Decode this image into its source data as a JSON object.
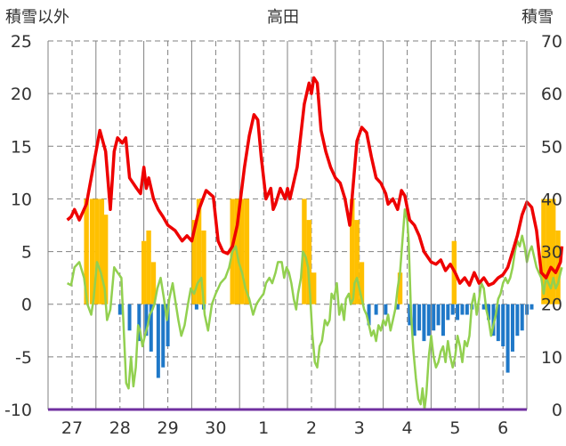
{
  "chart_data": {
    "type": "line",
    "title": "高田",
    "left_axis_label": "積雪以外",
    "right_axis_label": "積雪",
    "left_ylim": [
      -10,
      25
    ],
    "left_ticks": [
      "-10",
      "-5",
      "0",
      "5",
      "10",
      "15",
      "20",
      "25"
    ],
    "right_ylim": [
      0,
      70
    ],
    "right_ticks": [
      "0",
      "10",
      "20",
      "30",
      "40",
      "50",
      "60",
      "70"
    ],
    "days": [
      "27",
      "28",
      "29",
      "30",
      "1",
      "2",
      "3",
      "4",
      "5",
      "6"
    ],
    "grid": "dashed",
    "colors": {
      "red_line": "#ee0000",
      "green_line": "#92d050",
      "orange_bars": "#ffc000",
      "blue_bars": "#1f78c8",
      "baseline": "#7030a0",
      "grid": "#808080"
    },
    "red_series": [
      [
        -0.1,
        8.0
      ],
      [
        -0.02,
        8.3
      ],
      [
        0.05,
        9.0
      ],
      [
        0.15,
        8.0
      ],
      [
        0.3,
        9.5
      ],
      [
        0.4,
        12.0
      ],
      [
        0.5,
        14.5
      ],
      [
        0.58,
        16.5
      ],
      [
        0.7,
        14.5
      ],
      [
        0.8,
        9.0
      ],
      [
        0.88,
        14.5
      ],
      [
        0.95,
        15.8
      ],
      [
        1.05,
        15.3
      ],
      [
        1.12,
        15.8
      ],
      [
        1.2,
        12.0
      ],
      [
        1.35,
        11.0
      ],
      [
        1.43,
        10.5
      ],
      [
        1.5,
        13.0
      ],
      [
        1.55,
        11.0
      ],
      [
        1.6,
        12.0
      ],
      [
        1.7,
        10.0
      ],
      [
        1.8,
        9.0
      ],
      [
        1.9,
        8.3
      ],
      [
        2.0,
        7.5
      ],
      [
        2.15,
        7.0
      ],
      [
        2.3,
        6.0
      ],
      [
        2.4,
        6.5
      ],
      [
        2.5,
        6.0
      ],
      [
        2.55,
        7.0
      ],
      [
        2.65,
        9.0
      ],
      [
        2.8,
        10.8
      ],
      [
        2.95,
        10.2
      ],
      [
        3.05,
        6.0
      ],
      [
        3.15,
        5.0
      ],
      [
        3.25,
        4.8
      ],
      [
        3.35,
        5.5
      ],
      [
        3.45,
        7.5
      ],
      [
        3.6,
        13.0
      ],
      [
        3.7,
        16.0
      ],
      [
        3.8,
        18.0
      ],
      [
        3.88,
        17.5
      ],
      [
        3.95,
        14.0
      ],
      [
        4.05,
        10.0
      ],
      [
        4.15,
        11.0
      ],
      [
        4.2,
        9.0
      ],
      [
        4.25,
        9.5
      ],
      [
        4.35,
        11.0
      ],
      [
        4.45,
        10.0
      ],
      [
        4.5,
        11.0
      ],
      [
        4.55,
        10.0
      ],
      [
        4.7,
        13.0
      ],
      [
        4.85,
        19.0
      ],
      [
        4.95,
        21.0
      ],
      [
        5.0,
        20.0
      ],
      [
        5.05,
        21.5
      ],
      [
        5.12,
        21.0
      ],
      [
        5.2,
        16.5
      ],
      [
        5.3,
        14.5
      ],
      [
        5.4,
        13.0
      ],
      [
        5.5,
        12.0
      ],
      [
        5.6,
        11.5
      ],
      [
        5.7,
        10.0
      ],
      [
        5.8,
        7.5
      ],
      [
        5.95,
        15.5
      ],
      [
        6.05,
        16.8
      ],
      [
        6.15,
        16.3
      ],
      [
        6.25,
        14.0
      ],
      [
        6.35,
        12.0
      ],
      [
        6.45,
        11.5
      ],
      [
        6.55,
        10.5
      ],
      [
        6.6,
        9.5
      ],
      [
        6.7,
        10.0
      ],
      [
        6.8,
        9.0
      ],
      [
        6.88,
        10.8
      ],
      [
        6.95,
        10.3
      ],
      [
        7.05,
        8.0
      ],
      [
        7.15,
        7.5
      ],
      [
        7.25,
        6.5
      ],
      [
        7.35,
        5.0
      ],
      [
        7.5,
        4.0
      ],
      [
        7.6,
        3.8
      ],
      [
        7.7,
        4.2
      ],
      [
        7.8,
        3.2
      ],
      [
        7.9,
        3.8
      ],
      [
        8.0,
        3.0
      ],
      [
        8.1,
        2.0
      ],
      [
        8.2,
        2.5
      ],
      [
        8.3,
        1.8
      ],
      [
        8.4,
        3.0
      ],
      [
        8.5,
        2.0
      ],
      [
        8.6,
        2.5
      ],
      [
        8.7,
        1.8
      ],
      [
        8.8,
        2.0
      ],
      [
        8.9,
        2.5
      ],
      [
        9.0,
        2.8
      ],
      [
        9.1,
        3.5
      ],
      [
        9.2,
        5.0
      ],
      [
        9.3,
        6.5
      ],
      [
        9.4,
        8.5
      ],
      [
        9.5,
        9.7
      ],
      [
        9.6,
        9.2
      ],
      [
        9.7,
        7.0
      ],
      [
        9.8,
        3.0
      ],
      [
        9.9,
        2.5
      ],
      [
        10.0,
        3.5
      ],
      [
        10.1,
        3.0
      ],
      [
        10.2,
        4.0
      ],
      [
        10.23,
        5.5
      ]
    ],
    "green_series": [
      [
        -0.1,
        2.0
      ],
      [
        -0.02,
        1.8
      ],
      [
        0.05,
        3.5
      ],
      [
        0.15,
        4.0
      ],
      [
        0.25,
        2.5
      ],
      [
        0.32,
        0.0
      ],
      [
        0.4,
        -1.0
      ],
      [
        0.45,
        0.5
      ],
      [
        0.52,
        4.0
      ],
      [
        0.6,
        3.0
      ],
      [
        0.68,
        1.5
      ],
      [
        0.73,
        -1.5
      ],
      [
        0.8,
        -0.5
      ],
      [
        0.88,
        3.5
      ],
      [
        0.95,
        3.0
      ],
      [
        1.03,
        2.5
      ],
      [
        1.08,
        -2.5
      ],
      [
        1.13,
        -7.5
      ],
      [
        1.18,
        -8.0
      ],
      [
        1.23,
        -5.0
      ],
      [
        1.28,
        -7.8
      ],
      [
        1.33,
        -6.0
      ],
      [
        1.38,
        -2.0
      ],
      [
        1.42,
        -2.5
      ],
      [
        1.47,
        -4.0
      ],
      [
        1.52,
        -3.0
      ],
      [
        1.58,
        -2.0
      ],
      [
        1.62,
        -1.0
      ],
      [
        1.68,
        -0.5
      ],
      [
        1.72,
        0.0
      ],
      [
        1.78,
        1.5
      ],
      [
        1.85,
        2.5
      ],
      [
        1.92,
        0.5
      ],
      [
        1.98,
        -1.5
      ],
      [
        2.03,
        0.5
      ],
      [
        2.1,
        2.0
      ],
      [
        2.15,
        0.5
      ],
      [
        2.22,
        -1.5
      ],
      [
        2.28,
        -3.0
      ],
      [
        2.35,
        -2.0
      ],
      [
        2.42,
        0.0
      ],
      [
        2.48,
        1.5
      ],
      [
        2.55,
        1.0
      ],
      [
        2.62,
        2.0
      ],
      [
        2.7,
        2.5
      ],
      [
        2.77,
        -1.0
      ],
      [
        2.84,
        -2.5
      ],
      [
        2.92,
        0.0
      ],
      [
        3.0,
        1.0
      ],
      [
        3.1,
        2.0
      ],
      [
        3.2,
        2.5
      ],
      [
        3.28,
        3.5
      ],
      [
        3.35,
        5.0
      ],
      [
        3.42,
        5.5
      ],
      [
        3.48,
        4.0
      ],
      [
        3.55,
        3.0
      ],
      [
        3.62,
        1.5
      ],
      [
        3.7,
        0.5
      ],
      [
        3.78,
        -1.0
      ],
      [
        3.85,
        0.0
      ],
      [
        3.92,
        0.5
      ],
      [
        4.0,
        1.0
      ],
      [
        4.05,
        2.0
      ],
      [
        4.12,
        2.5
      ],
      [
        4.18,
        2.0
      ],
      [
        4.25,
        3.0
      ],
      [
        4.3,
        4.0
      ],
      [
        4.38,
        4.0
      ],
      [
        4.43,
        2.5
      ],
      [
        4.48,
        3.5
      ],
      [
        4.53,
        3.0
      ],
      [
        4.58,
        2.0
      ],
      [
        4.63,
        0.5
      ],
      [
        4.68,
        -0.5
      ],
      [
        4.72,
        1.0
      ],
      [
        4.78,
        2.5
      ],
      [
        4.82,
        5.0
      ],
      [
        4.88,
        4.5
      ],
      [
        4.93,
        3.5
      ],
      [
        4.97,
        1.0
      ],
      [
        5.02,
        -3.0
      ],
      [
        5.07,
        -5.5
      ],
      [
        5.12,
        -6.0
      ],
      [
        5.17,
        -4.0
      ],
      [
        5.22,
        -3.5
      ],
      [
        5.28,
        -1.5
      ],
      [
        5.33,
        -2.0
      ],
      [
        5.38,
        -1.5
      ],
      [
        5.42,
        1.0
      ],
      [
        5.47,
        0.5
      ],
      [
        5.53,
        2.0
      ],
      [
        5.58,
        -1.0
      ],
      [
        5.63,
        0.0
      ],
      [
        5.68,
        -1.5
      ],
      [
        5.72,
        0.5
      ],
      [
        5.78,
        1.0
      ],
      [
        5.82,
        0.0
      ],
      [
        5.87,
        0.5
      ],
      [
        5.9,
        2.0
      ],
      [
        5.95,
        2.5
      ],
      [
        6.0,
        1.5
      ],
      [
        6.05,
        0.5
      ],
      [
        6.1,
        -0.5
      ],
      [
        6.15,
        -1.0
      ],
      [
        6.2,
        -2.0
      ],
      [
        6.25,
        -3.0
      ],
      [
        6.3,
        -2.5
      ],
      [
        6.35,
        -3.5
      ],
      [
        6.4,
        -2.0
      ],
      [
        6.45,
        -2.5
      ],
      [
        6.5,
        -1.5
      ],
      [
        6.55,
        -2.0
      ],
      [
        6.6,
        -1.0
      ],
      [
        6.65,
        -2.5
      ],
      [
        6.7,
        -1.5
      ],
      [
        6.75,
        -0.5
      ],
      [
        6.8,
        1.5
      ],
      [
        6.85,
        3.0
      ],
      [
        6.9,
        6.0
      ],
      [
        6.95,
        9.0
      ],
      [
        7.0,
        8.0
      ],
      [
        7.03,
        6.0
      ],
      [
        7.08,
        -1.0
      ],
      [
        7.13,
        -4.5
      ],
      [
        7.18,
        -7.0
      ],
      [
        7.23,
        -9.0
      ],
      [
        7.28,
        -9.5
      ],
      [
        7.32,
        -8.0
      ],
      [
        7.36,
        -10.0
      ],
      [
        7.4,
        -8.5
      ],
      [
        7.45,
        -5.0
      ],
      [
        7.5,
        -3.0
      ],
      [
        7.55,
        -5.0
      ],
      [
        7.6,
        -6.0
      ],
      [
        7.65,
        -5.5
      ],
      [
        7.7,
        -4.5
      ],
      [
        7.75,
        -4.0
      ],
      [
        7.8,
        -5.5
      ],
      [
        7.85,
        -3.5
      ],
      [
        7.9,
        -5.0
      ],
      [
        7.95,
        -6.0
      ],
      [
        8.0,
        -5.0
      ],
      [
        8.05,
        -3.0
      ],
      [
        8.1,
        -4.0
      ],
      [
        8.15,
        -5.5
      ],
      [
        8.2,
        -3.5
      ],
      [
        8.25,
        -4.0
      ],
      [
        8.3,
        -3.0
      ],
      [
        8.35,
        0.0
      ],
      [
        8.4,
        1.0
      ],
      [
        8.45,
        -1.0
      ],
      [
        8.5,
        0.5
      ],
      [
        8.55,
        2.0
      ],
      [
        8.6,
        1.5
      ],
      [
        8.65,
        -0.5
      ],
      [
        8.7,
        -1.5
      ],
      [
        8.75,
        -3.0
      ],
      [
        8.8,
        -2.0
      ],
      [
        8.85,
        -1.0
      ],
      [
        8.9,
        0.5
      ],
      [
        8.95,
        1.0
      ],
      [
        9.0,
        2.0
      ],
      [
        9.05,
        2.5
      ],
      [
        9.1,
        2.0
      ],
      [
        9.15,
        2.5
      ],
      [
        9.2,
        3.5
      ],
      [
        9.25,
        5.0
      ],
      [
        9.3,
        6.0
      ],
      [
        9.35,
        5.5
      ],
      [
        9.4,
        6.5
      ],
      [
        9.45,
        5.5
      ],
      [
        9.5,
        4.0
      ],
      [
        9.55,
        5.0
      ],
      [
        9.6,
        5.5
      ],
      [
        9.65,
        4.5
      ],
      [
        9.7,
        3.5
      ],
      [
        9.75,
        3.0
      ],
      [
        9.8,
        2.5
      ],
      [
        9.85,
        1.0
      ],
      [
        9.9,
        2.5
      ],
      [
        9.95,
        2.0
      ],
      [
        10.0,
        1.5
      ],
      [
        10.05,
        2.5
      ],
      [
        10.1,
        1.5
      ],
      [
        10.15,
        2.0
      ],
      [
        10.2,
        3.0
      ],
      [
        10.23,
        3.5
      ]
    ],
    "orange_bars": [
      [
        0.3,
        10.0
      ],
      [
        0.42,
        10.0
      ],
      [
        0.52,
        10.0
      ],
      [
        0.62,
        10.0
      ],
      [
        0.7,
        8.5
      ],
      [
        1.5,
        6.0
      ],
      [
        1.6,
        7.0
      ],
      [
        1.7,
        4.0
      ],
      [
        2.55,
        8.0
      ],
      [
        2.65,
        10.0
      ],
      [
        2.75,
        7.0
      ],
      [
        3.35,
        10.0
      ],
      [
        3.45,
        10.0
      ],
      [
        3.55,
        10.0
      ],
      [
        3.65,
        10.0
      ],
      [
        4.85,
        10.0
      ],
      [
        4.95,
        8.0
      ],
      [
        5.05,
        3.0
      ],
      [
        5.85,
        10.0
      ],
      [
        5.95,
        8.0
      ],
      [
        6.05,
        4.0
      ],
      [
        6.85,
        3.0
      ],
      [
        7.98,
        6.0
      ],
      [
        9.85,
        10.0
      ],
      [
        9.95,
        10.0
      ],
      [
        10.05,
        10.0
      ],
      [
        10.15,
        7.0
      ]
    ],
    "blue_bars": [
      [
        1.0,
        -1.0
      ],
      [
        1.2,
        -2.5
      ],
      [
        1.4,
        -3.5
      ],
      [
        1.55,
        -3.0
      ],
      [
        1.65,
        -4.5
      ],
      [
        1.8,
        -7.0
      ],
      [
        1.9,
        -6.0
      ],
      [
        2.0,
        -4.0
      ],
      [
        2.6,
        -0.5
      ],
      [
        2.75,
        -0.5
      ],
      [
        6.2,
        -2.0
      ],
      [
        6.35,
        -1.0
      ],
      [
        6.55,
        -1.0
      ],
      [
        6.8,
        -0.5
      ],
      [
        7.05,
        -2.0
      ],
      [
        7.15,
        -3.0
      ],
      [
        7.25,
        -2.5
      ],
      [
        7.35,
        -3.5
      ],
      [
        7.45,
        -3.0
      ],
      [
        7.55,
        -2.5
      ],
      [
        7.65,
        -2.0
      ],
      [
        7.75,
        -3.0
      ],
      [
        7.85,
        -1.5
      ],
      [
        7.95,
        -1.0
      ],
      [
        8.05,
        -1.5
      ],
      [
        8.15,
        -1.0
      ],
      [
        8.25,
        -1.0
      ],
      [
        8.35,
        -0.5
      ],
      [
        8.6,
        -0.5
      ],
      [
        8.7,
        -1.5
      ],
      [
        8.8,
        -3.0
      ],
      [
        8.9,
        -3.5
      ],
      [
        9.0,
        -4.0
      ],
      [
        9.1,
        -6.5
      ],
      [
        9.2,
        -4.5
      ],
      [
        9.3,
        -3.0
      ],
      [
        9.4,
        -2.5
      ],
      [
        9.5,
        -1.0
      ],
      [
        9.6,
        -0.5
      ]
    ]
  }
}
